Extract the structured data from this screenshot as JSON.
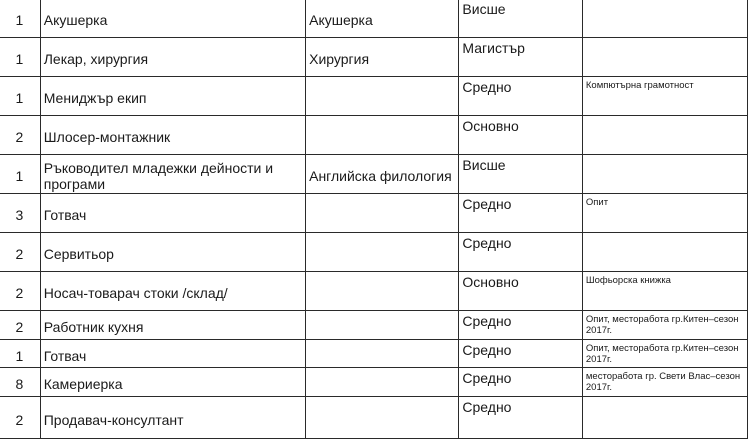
{
  "rows": [
    {
      "count": "1",
      "position": "Акушерка",
      "specialty": "Акушерка",
      "education": "Висше",
      "notes": ""
    },
    {
      "count": "1",
      "position": "Лекар, хирургия",
      "specialty": "Хирургия",
      "education": "Магистър",
      "notes": ""
    },
    {
      "count": "1",
      "position": "Мениджър екип",
      "specialty": "",
      "education": "Средно",
      "notes": "Компютърна грамотност"
    },
    {
      "count": "2",
      "position": "Шлосер-монтажник",
      "specialty": "",
      "education": "Основно",
      "notes": ""
    },
    {
      "count": "1",
      "position": "Ръководител младежки дейности и програми",
      "specialty": "Английска филология",
      "education": "Висше",
      "notes": ""
    },
    {
      "count": "3",
      "position": "Готвач",
      "specialty": "",
      "education": "Средно",
      "notes": "Опит"
    },
    {
      "count": "2",
      "position": "Сервитьор",
      "specialty": "",
      "education": "Средно",
      "notes": ""
    },
    {
      "count": "2",
      "position": "Носач-товарач стоки /склад/",
      "specialty": "",
      "education": "Основно",
      "notes": "Шофьорска книжка"
    },
    {
      "count": "2",
      "position": "Работник кухня",
      "specialty": "",
      "education": "Средно",
      "notes": "Опит, месторабота гр.Китен–сезон 2017г."
    },
    {
      "count": "1",
      "position": "Готвач",
      "specialty": "",
      "education": "Средно",
      "notes": "Опит, месторабота гр.Китен–сезон 2017г."
    },
    {
      "count": "8",
      "position": "Камериерка",
      "specialty": "",
      "education": "Средно",
      "notes": "месторабота гр. Свети Влас–сезон 2017г."
    },
    {
      "count": "2",
      "position": "Продавач-консултант",
      "specialty": "",
      "education": "Средно",
      "notes": ""
    }
  ]
}
